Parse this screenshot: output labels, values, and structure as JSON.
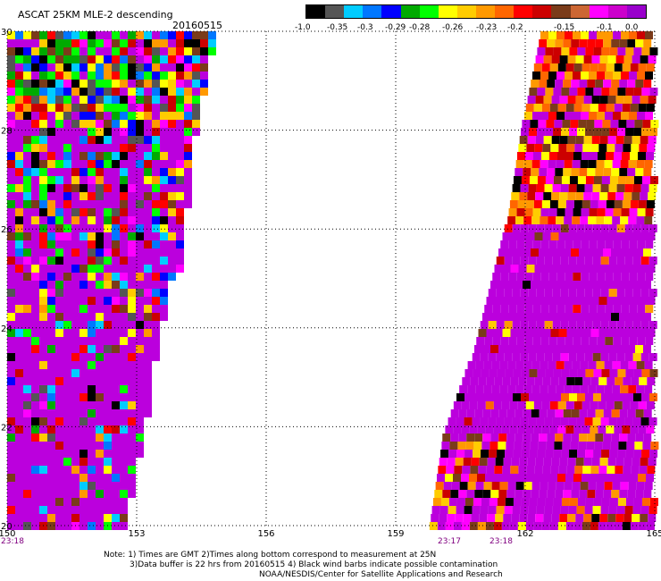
{
  "header": {
    "title": "ASCAT 25KM MLE-2 descending",
    "date": "20160515"
  },
  "colorbar": {
    "colors": [
      "#000000",
      "#555555",
      "#00ccff",
      "#0077ff",
      "#0000ff",
      "#00aa00",
      "#00ff00",
      "#ffff00",
      "#ffcc00",
      "#ff9900",
      "#ff6600",
      "#ff0000",
      "#cc0000",
      "#7a3b1a",
      "#cc6633",
      "#ff00ff",
      "#cc00cc",
      "#9900cc"
    ],
    "ticks": [
      "-1.0",
      "-0.35",
      "-0.3",
      "-0.29",
      "-0.28",
      "-0.26",
      "-0.23",
      "-0.2",
      "-0.15",
      "-0.1",
      "0.0"
    ]
  },
  "map": {
    "lat_labels": [
      "30",
      "28",
      "26",
      "24",
      "22",
      "20"
    ],
    "lon_labels": [
      "150",
      "153",
      "156",
      "159",
      "162",
      "165"
    ],
    "pass_times": [
      "23:18",
      "23:17",
      "23:18"
    ],
    "swath_fill": "#bb00dd",
    "grid_color": "#000000"
  },
  "notes": {
    "line1": "Note: 1) Times are GMT 2)Times along bottom correspond to measurement at 25N",
    "line2": "3)Data buffer is 22 hrs from 20160515 4) Black wind barbs indicate possible contamination",
    "line3": "NOAA/NESDIS/Center for Satellite Applications and Research"
  }
}
